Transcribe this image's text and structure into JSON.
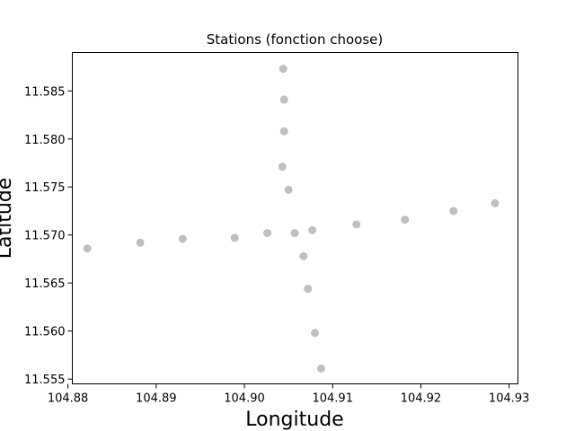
{
  "chart_data": {
    "type": "scatter",
    "title": "Stations (fonction choose)",
    "xlabel": "Longitude",
    "ylabel": "Latitude",
    "xlim": [
      104.8805,
      104.931
    ],
    "ylim": [
      11.5545,
      11.589
    ],
    "xticks": [
      104.88,
      104.89,
      104.9,
      104.91,
      104.92,
      104.93
    ],
    "xtick_labels": [
      "104.88",
      "104.89",
      "104.90",
      "104.91",
      "104.92",
      "104.93"
    ],
    "yticks": [
      11.555,
      11.56,
      11.565,
      11.57,
      11.575,
      11.58,
      11.585
    ],
    "ytick_labels": [
      "11.555",
      "11.560",
      "11.565",
      "11.570",
      "11.575",
      "11.580",
      "11.585"
    ],
    "grid": false,
    "legend": "none",
    "marker_color": "#bfbfbf",
    "points": [
      {
        "x": 104.9044,
        "y": 11.5873
      },
      {
        "x": 104.9045,
        "y": 11.5841
      },
      {
        "x": 104.9045,
        "y": 11.5808
      },
      {
        "x": 104.9043,
        "y": 11.5771
      },
      {
        "x": 104.905,
        "y": 11.5747
      },
      {
        "x": 104.9077,
        "y": 11.5705
      },
      {
        "x": 104.9057,
        "y": 11.5702
      },
      {
        "x": 104.9026,
        "y": 11.5702
      },
      {
        "x": 104.9067,
        "y": 11.5678
      },
      {
        "x": 104.9072,
        "y": 11.5644
      },
      {
        "x": 104.908,
        "y": 11.5598
      },
      {
        "x": 104.9087,
        "y": 11.5561
      },
      {
        "x": 104.9127,
        "y": 11.5711
      },
      {
        "x": 104.9182,
        "y": 11.5716
      },
      {
        "x": 104.9237,
        "y": 11.5725
      },
      {
        "x": 104.9284,
        "y": 11.5733
      },
      {
        "x": 104.8989,
        "y": 11.5697
      },
      {
        "x": 104.893,
        "y": 11.5696
      },
      {
        "x": 104.8882,
        "y": 11.5692
      },
      {
        "x": 104.8822,
        "y": 11.5686
      }
    ]
  }
}
